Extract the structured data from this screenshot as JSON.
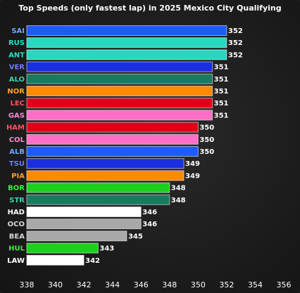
{
  "chart_data": {
    "type": "bar",
    "orientation": "horizontal",
    "title": "Top Speeds (only fastest lap) in 2025 Mexico City Qualifying",
    "xlim": [
      338,
      356
    ],
    "xticks": [
      338,
      340,
      342,
      344,
      346,
      348,
      350,
      352,
      354,
      356
    ],
    "categories": [
      "SAI",
      "RUS",
      "ANT",
      "VER",
      "ALO",
      "NOR",
      "LEC",
      "GAS",
      "HAM",
      "COL",
      "ALB",
      "TSU",
      "PIA",
      "BOR",
      "STR",
      "HAD",
      "OCO",
      "BEA",
      "HUL",
      "LAW"
    ],
    "values": [
      352,
      352,
      352,
      351,
      351,
      351,
      351,
      351,
      350,
      350,
      350,
      349,
      349,
      348,
      348,
      346,
      346,
      345,
      343,
      342
    ],
    "bar_colors": [
      "#1e5bff",
      "#27d8c0",
      "#27d8c0",
      "#1a2fe0",
      "#1a7a60",
      "#ff8a00",
      "#e0001a",
      "#ff6ec7",
      "#e0001a",
      "#ff6ec7",
      "#1e5bff",
      "#1a2fe0",
      "#ff8a00",
      "#1ed01e",
      "#1a7a60",
      "#ffffff",
      "#a8a8a8",
      "#a8a8a8",
      "#1ed01e",
      "#ffffff"
    ],
    "label_colors": [
      "#6fa8ff",
      "#27e0c8",
      "#27e0c8",
      "#6f7bff",
      "#3fd0a8",
      "#ffa030",
      "#ff5060",
      "#ff8ad6",
      "#ff5060",
      "#ff8ad6",
      "#6fa8ff",
      "#6f7bff",
      "#ffa030",
      "#3ef03e",
      "#3fd0a8",
      "#ffffff",
      "#d8d8d8",
      "#d8d8d8",
      "#3ef03e",
      "#ffffff"
    ],
    "grid": false
  }
}
